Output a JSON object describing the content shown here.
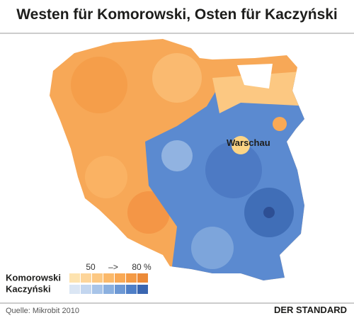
{
  "header": {
    "title": "Westen für Komorowski, Osten für Kaczyński"
  },
  "map": {
    "city_label": "Warschau"
  },
  "legend": {
    "scale_min": "50",
    "scale_arrow": "–>",
    "scale_max": "80 %",
    "items": [
      {
        "name": "Komorowski",
        "colors": [
          "#fde3b0",
          "#fdd59a",
          "#fcc882",
          "#fbb96a",
          "#f9a955",
          "#f49a45",
          "#ec8a38"
        ]
      },
      {
        "name": "Kaczyński",
        "colors": [
          "#dbe6f4",
          "#c3d6ef",
          "#a8c4e8",
          "#8bb0df",
          "#6d98d4",
          "#4f7fc7",
          "#3a66b0"
        ]
      }
    ]
  },
  "footer": {
    "source": "Quelle: Mikrobit 2010",
    "logo": "DER STANDARD"
  }
}
